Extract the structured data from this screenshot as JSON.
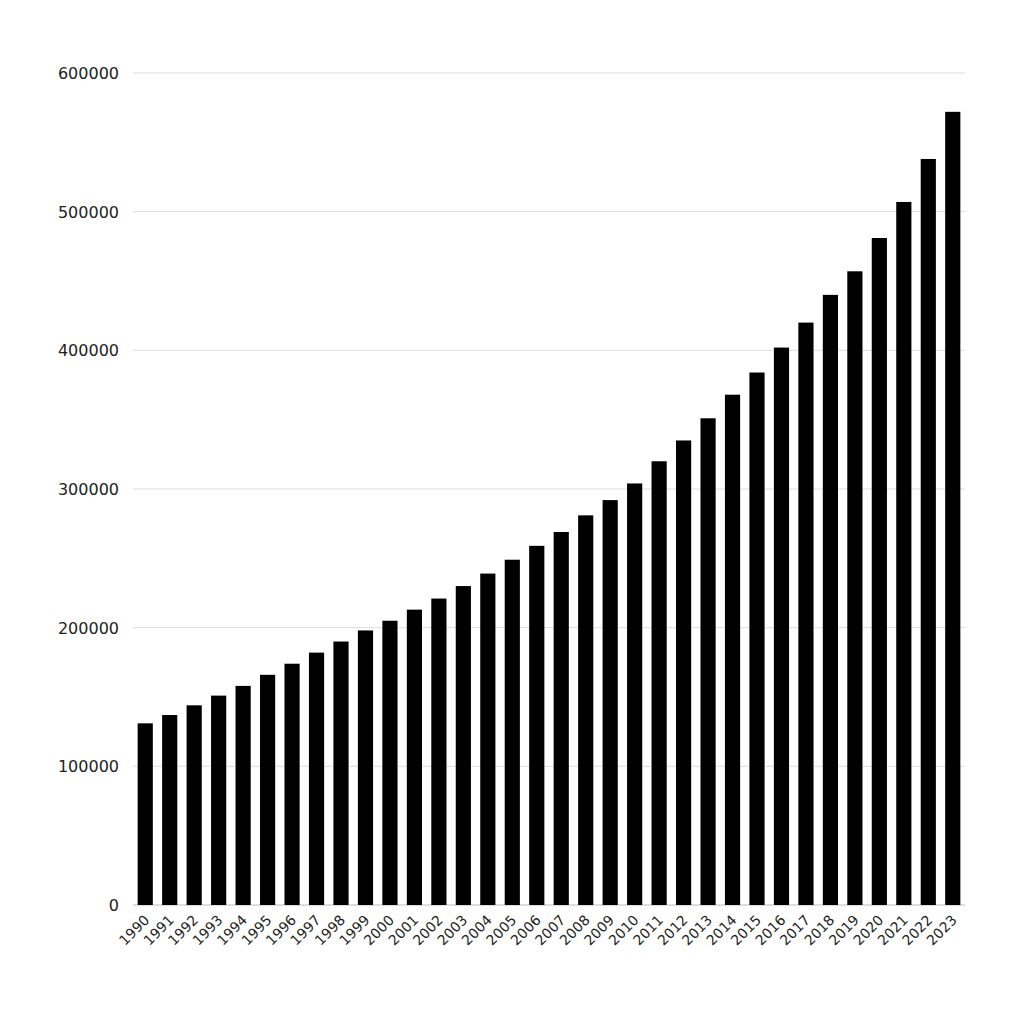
{
  "chart_data": {
    "type": "bar",
    "categories": [
      "1990",
      "1991",
      "1992",
      "1993",
      "1994",
      "1995",
      "1996",
      "1997",
      "1998",
      "1999",
      "2000",
      "2001",
      "2002",
      "2003",
      "2004",
      "2005",
      "2006",
      "2007",
      "2008",
      "2009",
      "2010",
      "2011",
      "2012",
      "2013",
      "2014",
      "2015",
      "2016",
      "2017",
      "2018",
      "2019",
      "2020",
      "2021",
      "2022",
      "2023"
    ],
    "values": [
      131000,
      137000,
      144000,
      151000,
      158000,
      166000,
      174000,
      182000,
      190000,
      198000,
      205000,
      213000,
      221000,
      230000,
      239000,
      249000,
      259000,
      269000,
      281000,
      292000,
      304000,
      320000,
      335000,
      351000,
      368000,
      384000,
      402000,
      420000,
      440000,
      457000,
      481000,
      507000,
      538000,
      572000
    ],
    "color": "#000000",
    "ylim": [
      0,
      600000
    ],
    "yticks": [
      0,
      100000,
      200000,
      300000,
      400000,
      500000,
      600000
    ],
    "grid": true
  }
}
